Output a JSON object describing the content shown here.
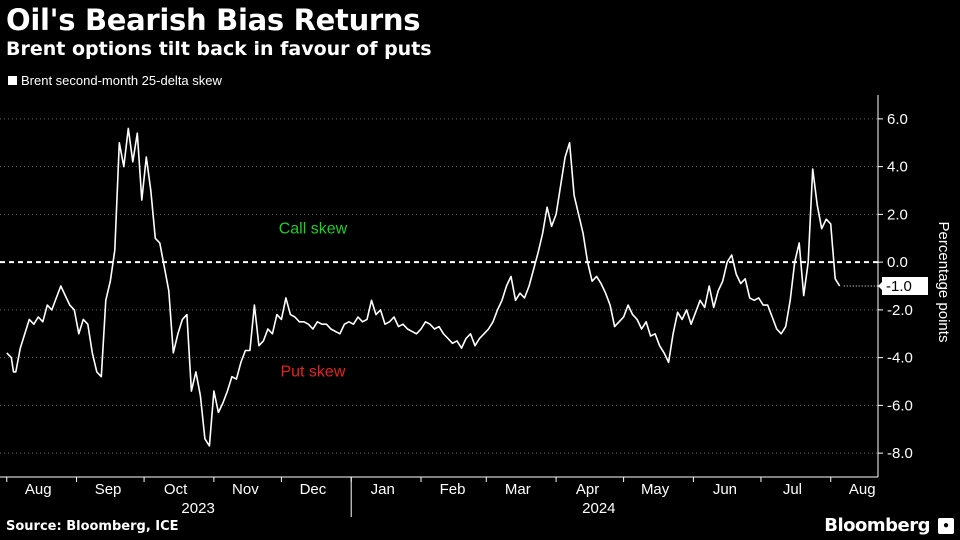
{
  "title": "Oil's Bearish Bias Returns",
  "subtitle": "Brent options tilt back in favour of puts",
  "source": "Source: Bloomberg, ICE",
  "brand": "Bloomberg",
  "brand_badge": "💬",
  "chart_data": {
    "type": "line",
    "series": [
      {
        "name": "Brent second-month 25-delta skew",
        "color": "#ffffff",
        "points": [
          [
            "2023-08-01",
            -3.8
          ],
          [
            "2023-08-02",
            -3.9
          ],
          [
            "2023-08-03",
            -4.0
          ],
          [
            "2023-08-04",
            -4.6
          ],
          [
            "2023-08-05",
            -4.6
          ],
          [
            "2023-08-07",
            -3.6
          ],
          [
            "2023-08-09",
            -3.0
          ],
          [
            "2023-08-11",
            -2.4
          ],
          [
            "2023-08-13",
            -2.6
          ],
          [
            "2023-08-15",
            -2.3
          ],
          [
            "2023-08-17",
            -2.5
          ],
          [
            "2023-08-19",
            -1.8
          ],
          [
            "2023-08-21",
            -2.0
          ],
          [
            "2023-08-23",
            -1.5
          ],
          [
            "2023-08-25",
            -1.0
          ],
          [
            "2023-08-27",
            -1.4
          ],
          [
            "2023-08-29",
            -1.8
          ],
          [
            "2023-08-31",
            -2.0
          ],
          [
            "2023-09-02",
            -3.0
          ],
          [
            "2023-09-04",
            -2.4
          ],
          [
            "2023-09-06",
            -2.6
          ],
          [
            "2023-09-08",
            -3.8
          ],
          [
            "2023-09-10",
            -4.6
          ],
          [
            "2023-09-12",
            -4.8
          ],
          [
            "2023-09-14",
            -1.6
          ],
          [
            "2023-09-16",
            -0.8
          ],
          [
            "2023-09-18",
            0.5
          ],
          [
            "2023-09-20",
            5.0
          ],
          [
            "2023-09-22",
            4.0
          ],
          [
            "2023-09-24",
            5.6
          ],
          [
            "2023-09-26",
            4.2
          ],
          [
            "2023-09-28",
            5.4
          ],
          [
            "2023-09-30",
            2.6
          ],
          [
            "2023-10-02",
            4.4
          ],
          [
            "2023-10-04",
            3.0
          ],
          [
            "2023-10-06",
            1.0
          ],
          [
            "2023-10-08",
            0.8
          ],
          [
            "2023-10-10",
            -0.2
          ],
          [
            "2023-10-12",
            -1.2
          ],
          [
            "2023-10-14",
            -3.8
          ],
          [
            "2023-10-16",
            -3.0
          ],
          [
            "2023-10-18",
            -2.4
          ],
          [
            "2023-10-20",
            -2.2
          ],
          [
            "2023-10-22",
            -5.4
          ],
          [
            "2023-10-24",
            -4.6
          ],
          [
            "2023-10-26",
            -5.6
          ],
          [
            "2023-10-28",
            -7.4
          ],
          [
            "2023-10-30",
            -7.7
          ],
          [
            "2023-11-01",
            -5.4
          ],
          [
            "2023-11-03",
            -6.3
          ],
          [
            "2023-11-05",
            -5.9
          ],
          [
            "2023-11-07",
            -5.4
          ],
          [
            "2023-11-09",
            -4.8
          ],
          [
            "2023-11-11",
            -4.9
          ],
          [
            "2023-11-13",
            -4.2
          ],
          [
            "2023-11-15",
            -3.7
          ],
          [
            "2023-11-17",
            -3.7
          ],
          [
            "2023-11-19",
            -1.8
          ],
          [
            "2023-11-21",
            -3.5
          ],
          [
            "2023-11-23",
            -3.3
          ],
          [
            "2023-11-25",
            -2.8
          ],
          [
            "2023-11-27",
            -3.0
          ],
          [
            "2023-11-29",
            -2.2
          ],
          [
            "2023-12-01",
            -2.4
          ],
          [
            "2023-12-03",
            -1.5
          ],
          [
            "2023-12-05",
            -2.2
          ],
          [
            "2023-12-07",
            -2.3
          ],
          [
            "2023-12-09",
            -2.5
          ],
          [
            "2023-12-11",
            -2.5
          ],
          [
            "2023-12-13",
            -2.6
          ],
          [
            "2023-12-15",
            -2.8
          ],
          [
            "2023-12-17",
            -2.5
          ],
          [
            "2023-12-19",
            -2.6
          ],
          [
            "2023-12-21",
            -2.6
          ],
          [
            "2023-12-23",
            -2.8
          ],
          [
            "2023-12-25",
            -2.9
          ],
          [
            "2023-12-27",
            -3.0
          ],
          [
            "2023-12-29",
            -2.6
          ],
          [
            "2023-12-31",
            -2.5
          ],
          [
            "2024-01-02",
            -2.6
          ],
          [
            "2024-01-04",
            -2.3
          ],
          [
            "2024-01-06",
            -2.5
          ],
          [
            "2024-01-08",
            -2.4
          ],
          [
            "2024-01-10",
            -1.6
          ],
          [
            "2024-01-12",
            -2.2
          ],
          [
            "2024-01-14",
            -2.0
          ],
          [
            "2024-01-16",
            -2.6
          ],
          [
            "2024-01-18",
            -2.5
          ],
          [
            "2024-01-20",
            -2.3
          ],
          [
            "2024-01-22",
            -2.7
          ],
          [
            "2024-01-24",
            -2.6
          ],
          [
            "2024-01-26",
            -2.8
          ],
          [
            "2024-01-28",
            -2.9
          ],
          [
            "2024-01-30",
            -3.0
          ],
          [
            "2024-02-01",
            -2.8
          ],
          [
            "2024-02-03",
            -2.5
          ],
          [
            "2024-02-05",
            -2.6
          ],
          [
            "2024-02-07",
            -2.8
          ],
          [
            "2024-02-09",
            -2.7
          ],
          [
            "2024-02-11",
            -3.0
          ],
          [
            "2024-02-13",
            -3.2
          ],
          [
            "2024-02-15",
            -3.4
          ],
          [
            "2024-02-17",
            -3.3
          ],
          [
            "2024-02-19",
            -3.6
          ],
          [
            "2024-02-21",
            -3.2
          ],
          [
            "2024-02-23",
            -3.0
          ],
          [
            "2024-02-25",
            -3.5
          ],
          [
            "2024-02-27",
            -3.2
          ],
          [
            "2024-02-29",
            -3.0
          ],
          [
            "2024-03-02",
            -2.8
          ],
          [
            "2024-03-04",
            -2.5
          ],
          [
            "2024-03-06",
            -2.0
          ],
          [
            "2024-03-08",
            -1.6
          ],
          [
            "2024-03-10",
            -1.0
          ],
          [
            "2024-03-12",
            -0.6
          ],
          [
            "2024-03-14",
            -1.6
          ],
          [
            "2024-03-16",
            -1.3
          ],
          [
            "2024-03-18",
            -1.5
          ],
          [
            "2024-03-20",
            -1.0
          ],
          [
            "2024-03-22",
            -0.3
          ],
          [
            "2024-03-24",
            0.4
          ],
          [
            "2024-03-26",
            1.2
          ],
          [
            "2024-03-28",
            2.3
          ],
          [
            "2024-03-30",
            1.5
          ],
          [
            "2024-04-01",
            2.0
          ],
          [
            "2024-04-03",
            3.2
          ],
          [
            "2024-04-05",
            4.4
          ],
          [
            "2024-04-07",
            5.0
          ],
          [
            "2024-04-09",
            2.8
          ],
          [
            "2024-04-11",
            2.0
          ],
          [
            "2024-04-13",
            1.2
          ],
          [
            "2024-04-15",
            0.0
          ],
          [
            "2024-04-17",
            -0.8
          ],
          [
            "2024-04-19",
            -0.6
          ],
          [
            "2024-04-21",
            -0.9
          ],
          [
            "2024-04-23",
            -1.3
          ],
          [
            "2024-04-25",
            -1.8
          ],
          [
            "2024-04-27",
            -2.7
          ],
          [
            "2024-04-29",
            -2.5
          ],
          [
            "2024-05-01",
            -2.3
          ],
          [
            "2024-05-03",
            -1.8
          ],
          [
            "2024-05-05",
            -2.2
          ],
          [
            "2024-05-07",
            -2.4
          ],
          [
            "2024-05-09",
            -2.8
          ],
          [
            "2024-05-11",
            -2.5
          ],
          [
            "2024-05-13",
            -3.1
          ],
          [
            "2024-05-15",
            -3.0
          ],
          [
            "2024-05-17",
            -3.5
          ],
          [
            "2024-05-19",
            -3.8
          ],
          [
            "2024-05-21",
            -4.2
          ],
          [
            "2024-05-23",
            -3.0
          ],
          [
            "2024-05-25",
            -2.1
          ],
          [
            "2024-05-27",
            -2.4
          ],
          [
            "2024-05-29",
            -2.0
          ],
          [
            "2024-05-31",
            -2.6
          ],
          [
            "2024-06-02",
            -2.1
          ],
          [
            "2024-06-04",
            -1.6
          ],
          [
            "2024-06-06",
            -1.9
          ],
          [
            "2024-06-08",
            -1.0
          ],
          [
            "2024-06-10",
            -1.9
          ],
          [
            "2024-06-12",
            -1.2
          ],
          [
            "2024-06-14",
            -0.8
          ],
          [
            "2024-06-16",
            0.0
          ],
          [
            "2024-06-18",
            0.3
          ],
          [
            "2024-06-20",
            -0.5
          ],
          [
            "2024-06-22",
            -0.9
          ],
          [
            "2024-06-24",
            -0.7
          ],
          [
            "2024-06-26",
            -1.5
          ],
          [
            "2024-06-28",
            -1.6
          ],
          [
            "2024-06-30",
            -1.5
          ],
          [
            "2024-07-02",
            -1.8
          ],
          [
            "2024-07-04",
            -1.8
          ],
          [
            "2024-07-06",
            -2.3
          ],
          [
            "2024-07-08",
            -2.8
          ],
          [
            "2024-07-10",
            -3.0
          ],
          [
            "2024-07-12",
            -2.7
          ],
          [
            "2024-07-14",
            -1.6
          ],
          [
            "2024-07-16",
            0.0
          ],
          [
            "2024-07-18",
            0.8
          ],
          [
            "2024-07-20",
            -1.4
          ],
          [
            "2024-07-22",
            0.0
          ],
          [
            "2024-07-24",
            3.9
          ],
          [
            "2024-07-26",
            2.4
          ],
          [
            "2024-07-28",
            1.4
          ],
          [
            "2024-07-30",
            1.8
          ],
          [
            "2024-08-01",
            1.6
          ],
          [
            "2024-08-03",
            -0.7
          ],
          [
            "2024-08-05",
            -1.0
          ]
        ]
      }
    ],
    "x_range": [
      "2023-07-29",
      "2024-08-22"
    ],
    "ylim": [
      -9,
      7
    ],
    "y_ticks": [
      6.0,
      4.0,
      2.0,
      0.0,
      -2.0,
      -4.0,
      -6.0,
      -8.0
    ],
    "y_tick_labels": [
      "6.0",
      "4.0",
      "2.0",
      "0.0",
      "-2.0",
      "-4.0",
      "-6.0",
      "-8.0"
    ],
    "ylabel": "Percentage points",
    "y_axis_side": "right",
    "grid": "horizontal dotted",
    "legend_position": "top-left",
    "reference_line": {
      "y": 0,
      "style": "dashed",
      "color": "#ffffff"
    },
    "month_ticks": [
      {
        "date": "2023-08-15",
        "label": "Aug"
      },
      {
        "date": "2023-09-15",
        "label": "Sep"
      },
      {
        "date": "2023-10-15",
        "label": "Oct"
      },
      {
        "date": "2023-11-15",
        "label": "Nov"
      },
      {
        "date": "2023-12-15",
        "label": "Dec"
      },
      {
        "date": "2024-01-15",
        "label": "Jan"
      },
      {
        "date": "2024-02-15",
        "label": "Feb"
      },
      {
        "date": "2024-03-15",
        "label": "Mar"
      },
      {
        "date": "2024-04-15",
        "label": "Apr"
      },
      {
        "date": "2024-05-15",
        "label": "May"
      },
      {
        "date": "2024-06-15",
        "label": "Jun"
      },
      {
        "date": "2024-07-15",
        "label": "Jul"
      },
      {
        "date": "2024-08-15",
        "label": "Aug"
      }
    ],
    "year_labels": [
      {
        "label": "2023",
        "center_date": "2023-10-25"
      },
      {
        "label": "2024",
        "center_date": "2024-04-20"
      }
    ],
    "year_divider_date": "2024-01-01",
    "annotations": [
      {
        "text": "Call skew",
        "x": "2023-12-15",
        "y": 1.2,
        "color": "#1fcf2a"
      },
      {
        "text": "Put skew",
        "x": "2023-12-15",
        "y": -4.8,
        "color": "#e8211e"
      }
    ],
    "last_value_label": "-1.0"
  }
}
